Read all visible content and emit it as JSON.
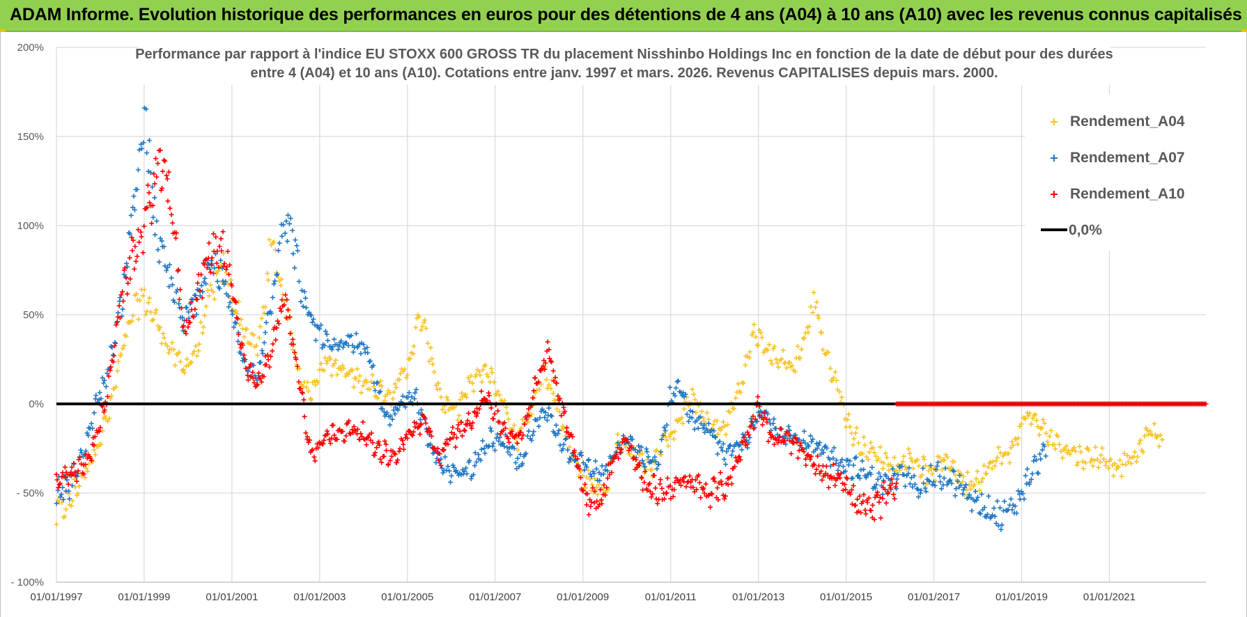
{
  "header": {
    "banner_title": "ADAM Informe. Evolution historique des performances en euros pour des détentions de 4 ans (A04) à 10 ans (A10) avec les revenus connus capitalisés"
  },
  "chart_data": {
    "type": "scatter",
    "title_line1": "Performance par rapport à l'indice EU STOXX 600 GROSS TR  du placement Nisshinbo Holdings Inc en fonction de la date de début pour des durées",
    "title_line2": "entre 4 (A04) et 10 ans (A10).  Cotations entre janv. 1997 et mars. 2026.  Revenus CAPITALISES depuis mars. 2000.",
    "y_ticks": [
      {
        "value": 200,
        "label": "200%"
      },
      {
        "value": 150,
        "label": "150%"
      },
      {
        "value": 100,
        "label": "100%"
      },
      {
        "value": 50,
        "label": "50%"
      },
      {
        "value": 0,
        "label": "0%"
      },
      {
        "value": -50,
        "label": "- 50%"
      },
      {
        "value": -100,
        "label": "- 100%"
      }
    ],
    "x_ticks": [
      {
        "value": 1997,
        "label": "01/01/1997"
      },
      {
        "value": 1999,
        "label": "01/01/1999"
      },
      {
        "value": 2001,
        "label": "01/01/2001"
      },
      {
        "value": 2003,
        "label": "01/01/2003"
      },
      {
        "value": 2005,
        "label": "01/01/2005"
      },
      {
        "value": 2007,
        "label": "01/01/2007"
      },
      {
        "value": 2009,
        "label": "01/01/2009"
      },
      {
        "value": 2011,
        "label": "01/01/2011"
      },
      {
        "value": 2013,
        "label": "01/01/2013"
      },
      {
        "value": 2015,
        "label": "01/01/2015"
      },
      {
        "value": 2017,
        "label": "01/01/2017"
      },
      {
        "value": 2019,
        "label": "01/01/2019"
      },
      {
        "value": 2021,
        "label": "01/01/2021"
      }
    ],
    "xlim": [
      1997,
      2023.2
    ],
    "ylim": [
      -100,
      200
    ],
    "grid": true,
    "legend_position": "top-right",
    "reference_line": {
      "name": "0,0%",
      "value": 0,
      "color": "#000000",
      "x_start": 1997,
      "x_end": 2023.2
    },
    "series": [
      {
        "name": "Rendement_A04",
        "color": "#f7c325",
        "x_range": [
          1997,
          2022.2
        ],
        "keypoints": [
          [
            1997.0,
            -62
          ],
          [
            1997.3,
            -55
          ],
          [
            1997.6,
            -40
          ],
          [
            1997.9,
            -25
          ],
          [
            1998.2,
            -5
          ],
          [
            1998.5,
            30
          ],
          [
            1998.8,
            55
          ],
          [
            1999.0,
            60
          ],
          [
            1999.3,
            45
          ],
          [
            1999.6,
            30
          ],
          [
            1999.9,
            20
          ],
          [
            2000.2,
            30
          ],
          [
            2000.5,
            60
          ],
          [
            2000.8,
            75
          ],
          [
            2001.0,
            60
          ],
          [
            2001.3,
            40
          ],
          [
            2001.6,
            30
          ],
          [
            2001.9,
            90
          ],
          [
            2002.2,
            60
          ],
          [
            2002.5,
            20
          ],
          [
            2002.8,
            5
          ],
          [
            2003.1,
            25
          ],
          [
            2003.4,
            20
          ],
          [
            2003.8,
            15
          ],
          [
            2004.2,
            10
          ],
          [
            2004.6,
            5
          ],
          [
            2005.0,
            20
          ],
          [
            2005.3,
            50
          ],
          [
            2005.5,
            30
          ],
          [
            2005.8,
            0
          ],
          [
            2006.1,
            -5
          ],
          [
            2006.4,
            10
          ],
          [
            2006.8,
            20
          ],
          [
            2007.2,
            0
          ],
          [
            2007.5,
            -20
          ],
          [
            2007.8,
            -5
          ],
          [
            2008.1,
            20
          ],
          [
            2008.4,
            0
          ],
          [
            2008.7,
            -25
          ],
          [
            2008.9,
            -35
          ],
          [
            2009.2,
            -45
          ],
          [
            2009.5,
            -50
          ],
          [
            2009.8,
            -20
          ],
          [
            2010.2,
            -30
          ],
          [
            2010.6,
            -35
          ],
          [
            2010.9,
            -20
          ],
          [
            2011.2,
            -10
          ],
          [
            2011.5,
            5
          ],
          [
            2011.8,
            -10
          ],
          [
            2012.2,
            -15
          ],
          [
            2012.6,
            10
          ],
          [
            2012.9,
            40
          ],
          [
            2013.2,
            30
          ],
          [
            2013.5,
            25
          ],
          [
            2013.8,
            20
          ],
          [
            2014.1,
            40
          ],
          [
            2014.3,
            60
          ],
          [
            2014.5,
            30
          ],
          [
            2014.8,
            10
          ],
          [
            2015.1,
            -15
          ],
          [
            2015.4,
            -25
          ],
          [
            2015.8,
            -30
          ],
          [
            2016.1,
            -35
          ],
          [
            2016.5,
            -30
          ],
          [
            2016.9,
            -40
          ],
          [
            2017.3,
            -30
          ],
          [
            2017.7,
            -45
          ],
          [
            2018.1,
            -40
          ],
          [
            2018.5,
            -30
          ],
          [
            2018.8,
            -25
          ],
          [
            2019.1,
            -5
          ],
          [
            2019.3,
            -10
          ],
          [
            2019.7,
            -20
          ],
          [
            2020.0,
            -25
          ],
          [
            2020.4,
            -30
          ],
          [
            2020.8,
            -30
          ],
          [
            2021.2,
            -35
          ],
          [
            2021.6,
            -30
          ],
          [
            2021.9,
            -15
          ],
          [
            2022.2,
            -20
          ]
        ]
      },
      {
        "name": "Rendement_A07",
        "color": "#1f77c4",
        "x_range": [
          1997,
          2019.55
        ],
        "keypoints": [
          [
            1997.0,
            -50
          ],
          [
            1997.3,
            -45
          ],
          [
            1997.6,
            -30
          ],
          [
            1997.9,
            0
          ],
          [
            1998.2,
            20
          ],
          [
            1998.5,
            60
          ],
          [
            1998.8,
            120
          ],
          [
            1999.0,
            160
          ],
          [
            1999.3,
            90
          ],
          [
            1999.6,
            70
          ],
          [
            1999.9,
            45
          ],
          [
            2000.2,
            60
          ],
          [
            2000.5,
            80
          ],
          [
            2000.8,
            70
          ],
          [
            2001.0,
            50
          ],
          [
            2001.3,
            20
          ],
          [
            2001.6,
            15
          ],
          [
            2001.9,
            60
          ],
          [
            2002.2,
            110
          ],
          [
            2002.4,
            90
          ],
          [
            2002.7,
            50
          ],
          [
            2003.0,
            40
          ],
          [
            2003.3,
            30
          ],
          [
            2003.7,
            35
          ],
          [
            2004.1,
            30
          ],
          [
            2004.5,
            -10
          ],
          [
            2004.9,
            0
          ],
          [
            2005.2,
            5
          ],
          [
            2005.5,
            -20
          ],
          [
            2005.8,
            -35
          ],
          [
            2006.1,
            -40
          ],
          [
            2006.5,
            -35
          ],
          [
            2006.9,
            -20
          ],
          [
            2007.3,
            -25
          ],
          [
            2007.6,
            -35
          ],
          [
            2007.9,
            -10
          ],
          [
            2008.2,
            -5
          ],
          [
            2008.5,
            -20
          ],
          [
            2008.8,
            -30
          ],
          [
            2009.1,
            -35
          ],
          [
            2009.4,
            -40
          ],
          [
            2009.7,
            -30
          ],
          [
            2010.0,
            -20
          ],
          [
            2010.4,
            -30
          ],
          [
            2010.7,
            -35
          ],
          [
            2011.0,
            5
          ],
          [
            2011.2,
            10
          ],
          [
            2011.5,
            -10
          ],
          [
            2011.9,
            -15
          ],
          [
            2012.3,
            -30
          ],
          [
            2012.7,
            -20
          ],
          [
            2013.1,
            -5
          ],
          [
            2013.5,
            -15
          ],
          [
            2013.9,
            -20
          ],
          [
            2014.3,
            -25
          ],
          [
            2014.7,
            -30
          ],
          [
            2015.1,
            -35
          ],
          [
            2015.5,
            -40
          ],
          [
            2015.9,
            -45
          ],
          [
            2016.3,
            -40
          ],
          [
            2016.7,
            -45
          ],
          [
            2017.1,
            -40
          ],
          [
            2017.5,
            -45
          ],
          [
            2017.9,
            -55
          ],
          [
            2018.3,
            -60
          ],
          [
            2018.6,
            -65
          ],
          [
            2018.9,
            -55
          ],
          [
            2019.2,
            -40
          ],
          [
            2019.55,
            -25
          ]
        ]
      },
      {
        "name": "Rendement_A10",
        "color": "#ff0000",
        "x_range": [
          1997,
          2016.15
        ],
        "keypoints": [
          [
            1997.0,
            -45
          ],
          [
            1997.3,
            -40
          ],
          [
            1997.6,
            -35
          ],
          [
            1997.9,
            -20
          ],
          [
            1998.2,
            10
          ],
          [
            1998.4,
            50
          ],
          [
            1998.7,
            80
          ],
          [
            1999.0,
            100
          ],
          [
            1999.3,
            130
          ],
          [
            1999.6,
            120
          ],
          [
            1999.9,
            40
          ],
          [
            2000.2,
            60
          ],
          [
            2000.5,
            85
          ],
          [
            2000.8,
            90
          ],
          [
            2001.0,
            65
          ],
          [
            2001.3,
            20
          ],
          [
            2001.6,
            10
          ],
          [
            2001.9,
            30
          ],
          [
            2002.2,
            60
          ],
          [
            2002.5,
            20
          ],
          [
            2002.8,
            -30
          ],
          [
            2003.1,
            -20
          ],
          [
            2003.5,
            -15
          ],
          [
            2003.9,
            -15
          ],
          [
            2004.3,
            -25
          ],
          [
            2004.7,
            -30
          ],
          [
            2005.1,
            -15
          ],
          [
            2005.4,
            -10
          ],
          [
            2005.7,
            -30
          ],
          [
            2006.0,
            -20
          ],
          [
            2006.4,
            -10
          ],
          [
            2006.8,
            5
          ],
          [
            2007.2,
            -15
          ],
          [
            2007.6,
            -20
          ],
          [
            2007.9,
            10
          ],
          [
            2008.2,
            30
          ],
          [
            2008.5,
            0
          ],
          [
            2008.8,
            -25
          ],
          [
            2009.1,
            -55
          ],
          [
            2009.4,
            -55
          ],
          [
            2009.7,
            -30
          ],
          [
            2010.0,
            -20
          ],
          [
            2010.4,
            -45
          ],
          [
            2010.8,
            -50
          ],
          [
            2011.1,
            -45
          ],
          [
            2011.5,
            -45
          ],
          [
            2011.9,
            -50
          ],
          [
            2012.3,
            -45
          ],
          [
            2012.7,
            -20
          ],
          [
            2013.0,
            0
          ],
          [
            2013.3,
            -20
          ],
          [
            2013.7,
            -20
          ],
          [
            2014.1,
            -30
          ],
          [
            2014.5,
            -40
          ],
          [
            2014.9,
            -40
          ],
          [
            2015.2,
            -55
          ],
          [
            2015.6,
            -60
          ],
          [
            2016.15,
            -45
          ]
        ]
      }
    ],
    "flat_segment": {
      "series": "Rendement_A10",
      "x_range": [
        2016.15,
        2023.2
      ],
      "value": 0
    }
  }
}
